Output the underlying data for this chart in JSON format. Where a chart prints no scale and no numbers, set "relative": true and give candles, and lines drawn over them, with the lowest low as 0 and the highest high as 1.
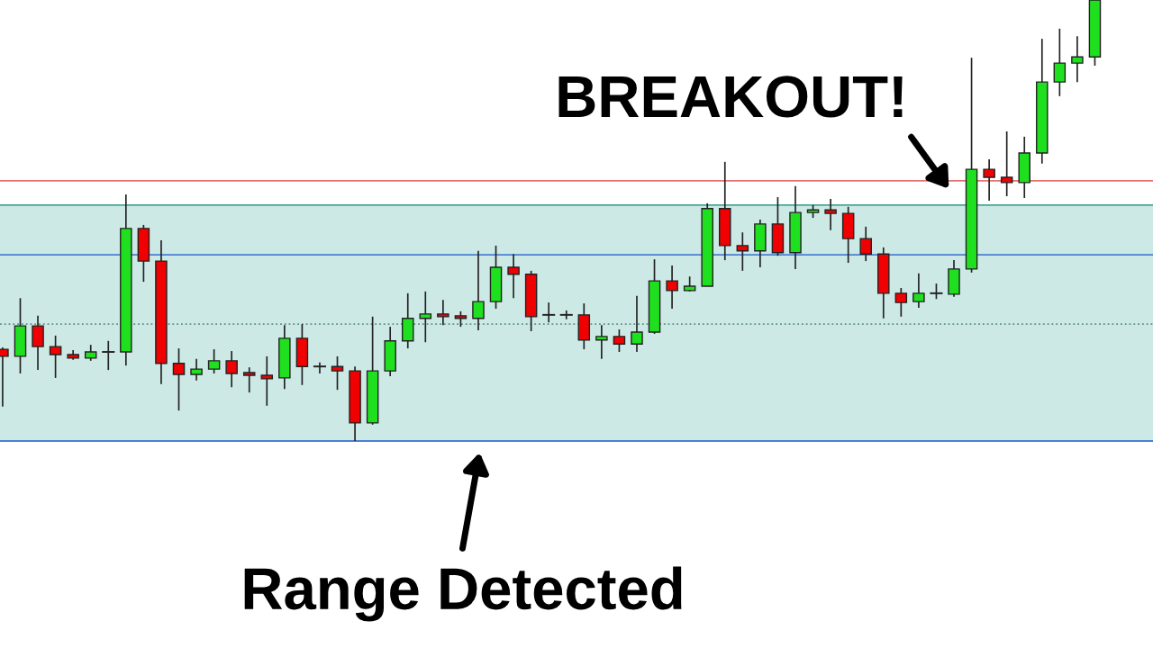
{
  "chart_data": {
    "type": "candlestick",
    "relative": true,
    "tick_labels": false,
    "grid": false,
    "categories": [
      null,
      null,
      null,
      null,
      null,
      null,
      null,
      null,
      null,
      null,
      null,
      null,
      null,
      null,
      null,
      null,
      null,
      null,
      null,
      null,
      null,
      null,
      null,
      null,
      null,
      null,
      null,
      null,
      null,
      null,
      null,
      null,
      null,
      null,
      null,
      null,
      null,
      null,
      null,
      null,
      null,
      null,
      null,
      null,
      null,
      null,
      null,
      null,
      null,
      null,
      null,
      null,
      null,
      null,
      null,
      null,
      null,
      null,
      null,
      null,
      null,
      null,
      null
    ],
    "ohlc": [
      [
        0.208,
        0.212,
        0.078,
        0.192
      ],
      [
        0.192,
        0.324,
        0.153,
        0.261
      ],
      [
        0.261,
        0.284,
        0.161,
        0.214
      ],
      [
        0.214,
        0.239,
        0.143,
        0.196
      ],
      [
        0.196,
        0.206,
        0.184,
        0.188
      ],
      [
        0.188,
        0.218,
        0.182,
        0.202
      ],
      [
        0.202,
        0.227,
        0.161,
        0.202
      ],
      [
        0.202,
        0.559,
        0.171,
        0.482
      ],
      [
        0.482,
        0.49,
        0.361,
        0.408
      ],
      [
        0.408,
        0.455,
        0.129,
        0.176
      ],
      [
        0.176,
        0.21,
        0.069,
        0.151
      ],
      [
        0.151,
        0.186,
        0.137,
        0.163
      ],
      [
        0.163,
        0.208,
        0.153,
        0.182
      ],
      [
        0.182,
        0.204,
        0.122,
        0.153
      ],
      [
        0.155,
        0.167,
        0.11,
        0.149
      ],
      [
        0.149,
        0.192,
        0.08,
        0.141
      ],
      [
        0.143,
        0.263,
        0.118,
        0.233
      ],
      [
        0.233,
        0.265,
        0.127,
        0.169
      ],
      [
        0.169,
        0.178,
        0.153,
        0.169
      ],
      [
        0.169,
        0.192,
        0.116,
        0.159
      ],
      [
        0.159,
        0.169,
        0,
        0.041
      ],
      [
        0.041,
        0.282,
        0.037,
        0.159
      ],
      [
        0.159,
        0.259,
        0.147,
        0.227
      ],
      [
        0.227,
        0.335,
        0.21,
        0.278
      ],
      [
        0.278,
        0.339,
        0.224,
        0.288
      ],
      [
        0.288,
        0.32,
        0.263,
        0.282
      ],
      [
        0.284,
        0.294,
        0.259,
        0.278
      ],
      [
        0.278,
        0.431,
        0.251,
        0.316
      ],
      [
        0.316,
        0.443,
        0.3,
        0.394
      ],
      [
        0.394,
        0.424,
        0.324,
        0.378
      ],
      [
        0.378,
        0.386,
        0.249,
        0.282
      ],
      [
        0.286,
        0.314,
        0.269,
        0.286
      ],
      [
        0.286,
        0.296,
        0.276,
        0.286
      ],
      [
        0.286,
        0.312,
        0.208,
        0.229
      ],
      [
        0.229,
        0.263,
        0.186,
        0.237
      ],
      [
        0.237,
        0.253,
        0.202,
        0.22
      ],
      [
        0.22,
        0.329,
        0.202,
        0.247
      ],
      [
        0.247,
        0.412,
        0.243,
        0.363
      ],
      [
        0.363,
        0.398,
        0.3,
        0.341
      ],
      [
        0.341,
        0.373,
        0.339,
        0.351
      ],
      [
        0.351,
        0.539,
        0.351,
        0.527
      ],
      [
        0.527,
        0.633,
        0.41,
        0.443
      ],
      [
        0.443,
        0.473,
        0.386,
        0.431
      ],
      [
        0.431,
        0.502,
        0.394,
        0.492
      ],
      [
        0.492,
        0.553,
        0.42,
        0.427
      ],
      [
        0.427,
        0.578,
        0.39,
        0.518
      ],
      [
        0.518,
        0.535,
        0.506,
        0.524
      ],
      [
        0.524,
        0.549,
        0.478,
        0.516
      ],
      [
        0.516,
        0.531,
        0.404,
        0.459
      ],
      [
        0.459,
        0.486,
        0.408,
        0.424
      ],
      [
        0.424,
        0.439,
        0.278,
        0.335
      ],
      [
        0.335,
        0.347,
        0.282,
        0.314
      ],
      [
        0.316,
        0.38,
        0.302,
        0.335
      ],
      [
        0.335,
        0.357,
        0.322,
        0.335
      ],
      [
        0.333,
        0.41,
        0.327,
        0.39
      ],
      [
        0.39,
        0.869,
        0.382,
        0.616
      ],
      [
        0.616,
        0.639,
        0.545,
        0.598
      ],
      [
        0.598,
        0.702,
        0.555,
        0.586
      ],
      [
        0.586,
        0.69,
        0.551,
        0.653
      ],
      [
        0.653,
        0.912,
        0.629,
        0.814
      ],
      [
        0.814,
        0.935,
        0.782,
        0.857
      ],
      [
        0.857,
        0.918,
        0.814,
        0.871
      ],
      [
        0.871,
        1,
        0.851,
        1
      ]
    ],
    "bands": [
      {
        "axis": "y",
        "from": 0,
        "to": 0.535,
        "color": "#cce9e5"
      }
    ],
    "ref_lines": [
      {
        "axis": "y",
        "value": 0.59,
        "color": "#e57373",
        "line_style": "solid"
      },
      {
        "axis": "y",
        "value": 0.422,
        "color": "#4a7fd6",
        "line_style": "solid"
      },
      {
        "axis": "y",
        "value": 0.535,
        "color": "#45a894",
        "line_style": "solid"
      },
      {
        "axis": "y",
        "value": 0.265,
        "color": "#5f8f88",
        "line_style": "dotted"
      },
      {
        "axis": "y",
        "value": 0,
        "color": "#4a7fd6",
        "line_style": "solid"
      }
    ],
    "annotations": [
      "BREAKOUT!",
      "Range Detected"
    ]
  }
}
